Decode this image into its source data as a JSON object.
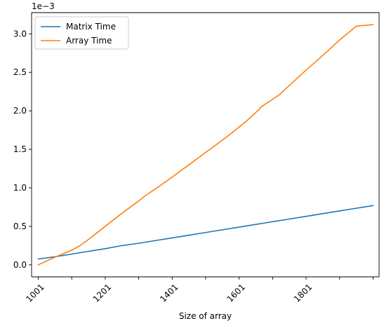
{
  "chart_data": {
    "type": "line",
    "title": "",
    "xlabel": "Size of array",
    "ylabel": "",
    "y_scale_label": "1e−3",
    "xlim": [
      981,
      2019
    ],
    "ylim": [
      -0.156,
      3.276
    ],
    "xticks": [
      1001,
      1101,
      1201,
      1301,
      1401,
      1501,
      1601,
      1701,
      1801,
      1901,
      2001
    ],
    "xtick_labels": [
      "1001",
      "",
      "1201",
      "",
      "1401",
      "",
      "1601",
      "",
      "1801",
      "",
      ""
    ],
    "yticks": [
      0.0,
      0.5,
      1.0,
      1.5,
      2.0,
      2.5,
      3.0
    ],
    "ytick_labels": [
      "0.0",
      "0.5",
      "1.0",
      "1.5",
      "2.0",
      "2.5",
      "3.0"
    ],
    "legend_position": "top-left",
    "grid": false,
    "series": [
      {
        "name": "Matrix Time",
        "color": "#1f77b4",
        "x": [
          1001,
          1051,
          1101,
          1151,
          1201,
          1251,
          1301,
          1351,
          1401,
          1451,
          1501,
          1551,
          1601,
          1651,
          1701,
          1751,
          1801,
          1851,
          1901,
          1951,
          2001
        ],
        "y": [
          0.075,
          0.105,
          0.14,
          0.175,
          0.21,
          0.25,
          0.28,
          0.315,
          0.35,
          0.385,
          0.42,
          0.455,
          0.49,
          0.525,
          0.56,
          0.595,
          0.63,
          0.665,
          0.7,
          0.735,
          0.77
        ]
      },
      {
        "name": "Array Time",
        "color": "#ff7f0e",
        "x": [
          1001,
          1051,
          1101,
          1126,
          1151,
          1201,
          1251,
          1301,
          1321,
          1351,
          1401,
          1451,
          1501,
          1551,
          1581,
          1621,
          1661,
          1666,
          1701,
          1721,
          1751,
          1801,
          1851,
          1901,
          1951,
          2001
        ],
        "y": [
          0.0,
          0.1,
          0.19,
          0.25,
          0.33,
          0.5,
          0.67,
          0.83,
          0.9,
          0.985,
          1.14,
          1.3,
          1.46,
          1.62,
          1.72,
          1.86,
          2.02,
          2.05,
          2.15,
          2.21,
          2.33,
          2.53,
          2.72,
          2.92,
          3.1,
          3.12
        ]
      }
    ]
  }
}
